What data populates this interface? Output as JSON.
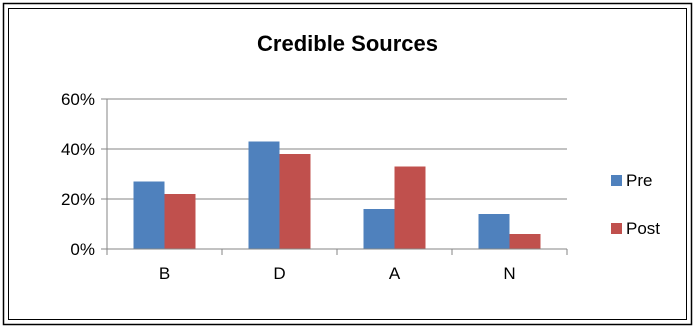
{
  "chart_data": {
    "type": "bar",
    "title": "Credible Sources",
    "xlabel": "",
    "ylabel": "",
    "categories": [
      "B",
      "D",
      "A",
      "N"
    ],
    "series": [
      {
        "name": "Pre",
        "values": [
          27,
          43,
          16,
          14
        ],
        "color": "#4f81bd"
      },
      {
        "name": "Post",
        "values": [
          22,
          38,
          33,
          6
        ],
        "color": "#c0504d"
      }
    ],
    "ylim": [
      0,
      60
    ],
    "yticks": [
      "0%",
      "20%",
      "40%",
      "60%"
    ],
    "ytick_values": [
      0,
      20,
      40,
      60
    ],
    "grid": true,
    "legend_position": "right"
  }
}
